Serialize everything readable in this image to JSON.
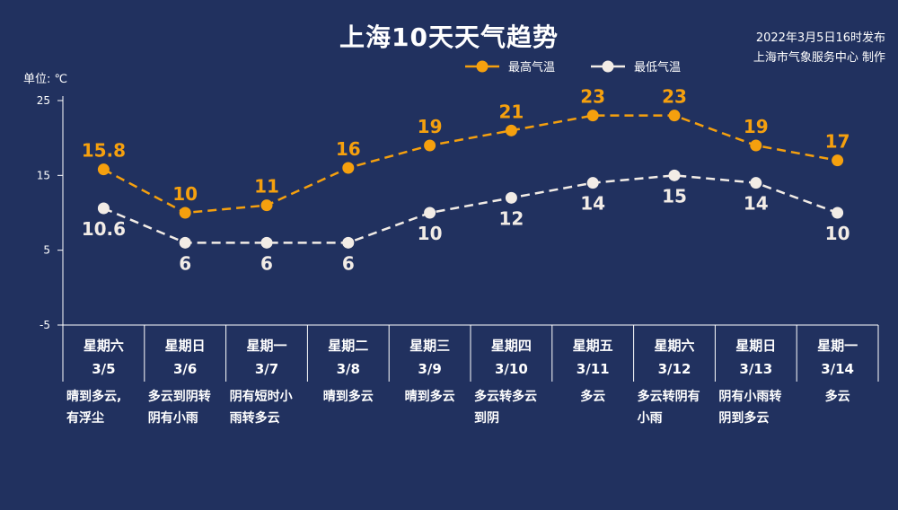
{
  "title": "上海10天天气趋势",
  "issue_time": "2022年3月5日16时发布",
  "issuer": "上海市气象服务中心 制作",
  "unit_label": "单位: ℃",
  "legend": {
    "high": "最高气温",
    "low": "最低气温"
  },
  "colors": {
    "background": "#21315f",
    "high": "#f5a00e",
    "low": "#f2ece6"
  },
  "days": [
    {
      "weekday": "星期六",
      "date": "3/5",
      "weather": [
        "晴到多云,",
        "有浮尘"
      ]
    },
    {
      "weekday": "星期日",
      "date": "3/6",
      "weather": [
        "多云到阴转",
        "阴有小雨"
      ]
    },
    {
      "weekday": "星期一",
      "date": "3/7",
      "weather": [
        "阴有短时小",
        "雨转多云"
      ]
    },
    {
      "weekday": "星期二",
      "date": "3/8",
      "weather": [
        "晴到多云"
      ]
    },
    {
      "weekday": "星期三",
      "date": "3/9",
      "weather": [
        "晴到多云"
      ]
    },
    {
      "weekday": "星期四",
      "date": "3/10",
      "weather": [
        "多云转多云",
        "到阴"
      ]
    },
    {
      "weekday": "星期五",
      "date": "3/11",
      "weather": [
        "多云"
      ]
    },
    {
      "weekday": "星期六",
      "date": "3/12",
      "weather": [
        "多云转阴有",
        "小雨"
      ]
    },
    {
      "weekday": "星期日",
      "date": "3/13",
      "weather": [
        "阴有小雨转",
        "阴到多云"
      ]
    },
    {
      "weekday": "星期一",
      "date": "3/14",
      "weather": [
        "多云"
      ]
    }
  ],
  "chart_data": {
    "type": "line",
    "title": "上海10天天气趋势",
    "categories": [
      "3/5",
      "3/6",
      "3/7",
      "3/8",
      "3/9",
      "3/10",
      "3/11",
      "3/12",
      "3/13",
      "3/14"
    ],
    "series": [
      {
        "name": "最高气温",
        "values": [
          15.8,
          10,
          11,
          16,
          19,
          21,
          23,
          23,
          19,
          17
        ],
        "labels": [
          "15.8",
          "10",
          "11",
          "16",
          "19",
          "21",
          "23",
          "23",
          "19",
          "17"
        ]
      },
      {
        "name": "最低气温",
        "values": [
          10.6,
          6,
          6,
          6,
          10,
          12,
          14,
          15,
          14,
          10
        ],
        "labels": [
          "10.6",
          "6",
          "6",
          "6",
          "10",
          "12",
          "14",
          "15",
          "14",
          "10"
        ]
      }
    ],
    "ylabel": "单位: ℃",
    "ylim": [
      -5,
      25
    ],
    "yticks": [
      25,
      15,
      5,
      -5
    ],
    "line_style": "dashed",
    "grid": false,
    "legend_position": "top"
  }
}
